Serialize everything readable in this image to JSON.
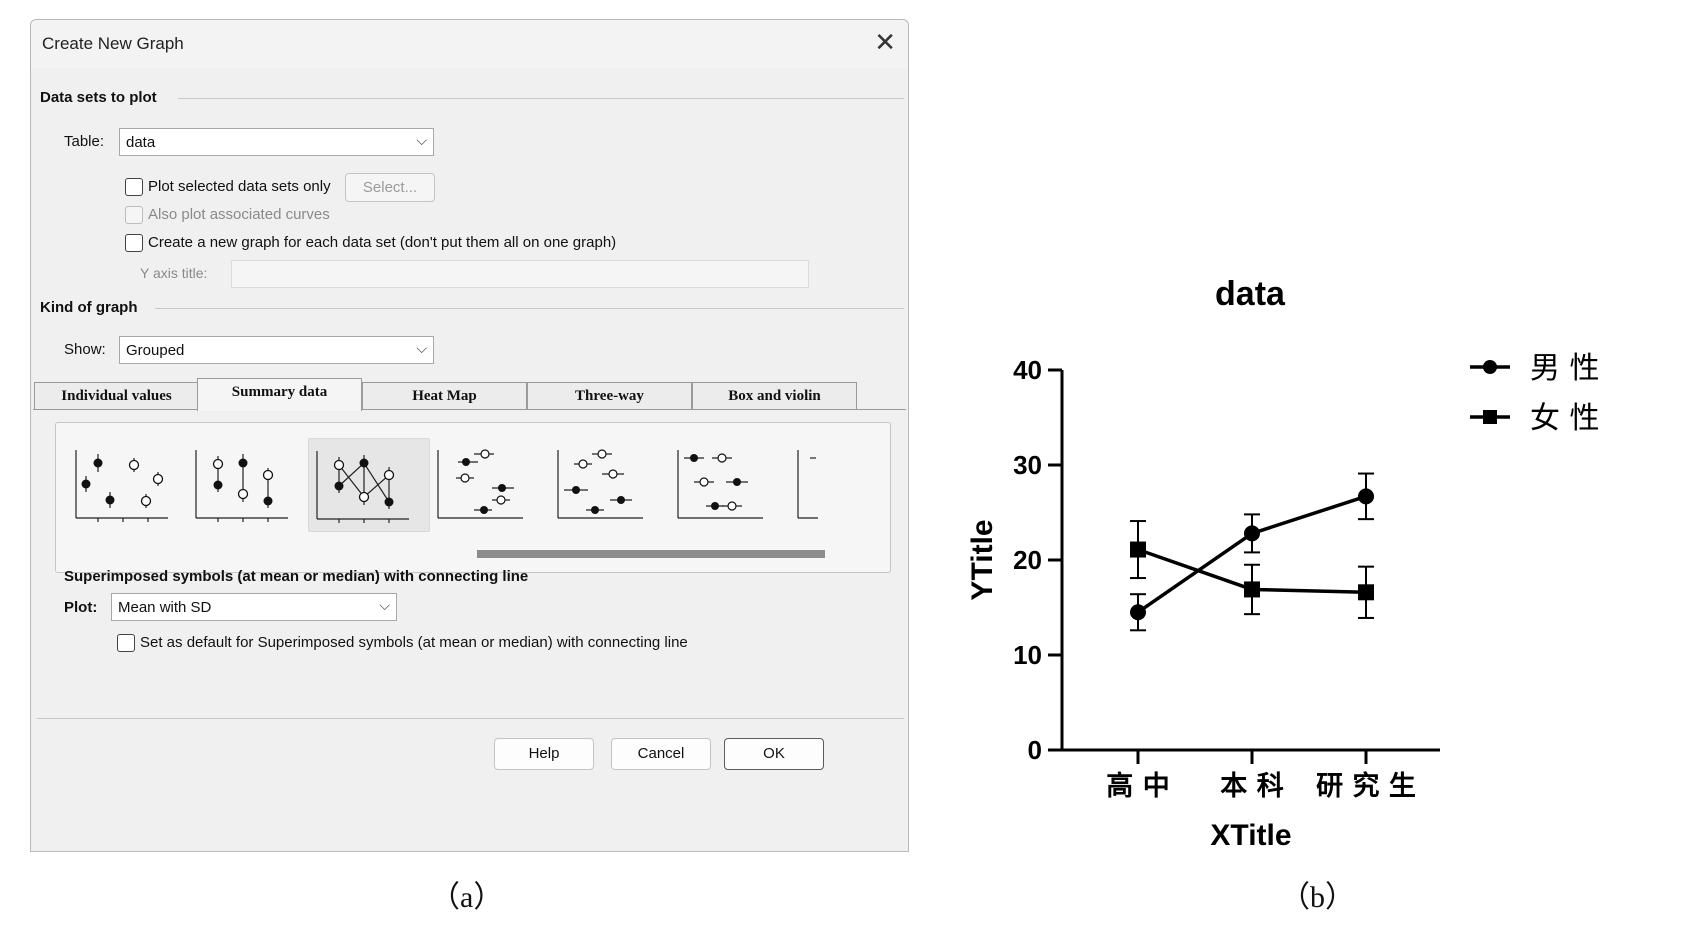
{
  "dialog": {
    "title": "Create New Graph",
    "data_sets_group": "Data sets to plot",
    "table_label": "Table:",
    "table_value": "data",
    "plot_selected_label": "Plot selected data sets only",
    "select_button": "Select...",
    "also_plot_label": "Also plot associated curves",
    "new_graph_each_label": "Create a new graph for each data set (don't put them all on one graph)",
    "y_axis_title_label": "Y axis title:",
    "kind_group": "Kind of graph",
    "show_label": "Show:",
    "show_value": "Grouped",
    "tabs": [
      "Individual values",
      "Summary data",
      "Heat Map",
      "Three-way",
      "Box and violin"
    ],
    "active_tab": "Summary data",
    "description": "Superimposed symbols (at mean or median) with connecting line",
    "plot_label": "Plot:",
    "plot_value": "Mean with SD",
    "set_default_label": "Set as default for Superimposed symbols (at mean or median) with connecting line",
    "help_button": "Help",
    "cancel_button": "Cancel",
    "ok_button": "OK"
  },
  "captions": {
    "a": "（a）",
    "b": "（b）"
  },
  "chart_data": {
    "type": "line",
    "title": "data",
    "xlabel": "XTitle",
    "ylabel": "YTitle",
    "categories": [
      "高 中",
      "本 科",
      "研 究 生"
    ],
    "ylim": [
      0,
      40
    ],
    "yticks": [
      "0",
      "10",
      "20",
      "30",
      "40"
    ],
    "legend_position": "right",
    "series": [
      {
        "name": "男 性",
        "marker": "circle",
        "values": [
          14.5,
          22.8,
          26.7
        ],
        "sd": [
          1.9,
          2.0,
          2.4
        ]
      },
      {
        "name": "女 性",
        "marker": "square",
        "values": [
          21.1,
          16.9,
          16.6
        ],
        "sd": [
          3.0,
          2.6,
          2.7
        ]
      }
    ],
    "color": "#000000"
  }
}
